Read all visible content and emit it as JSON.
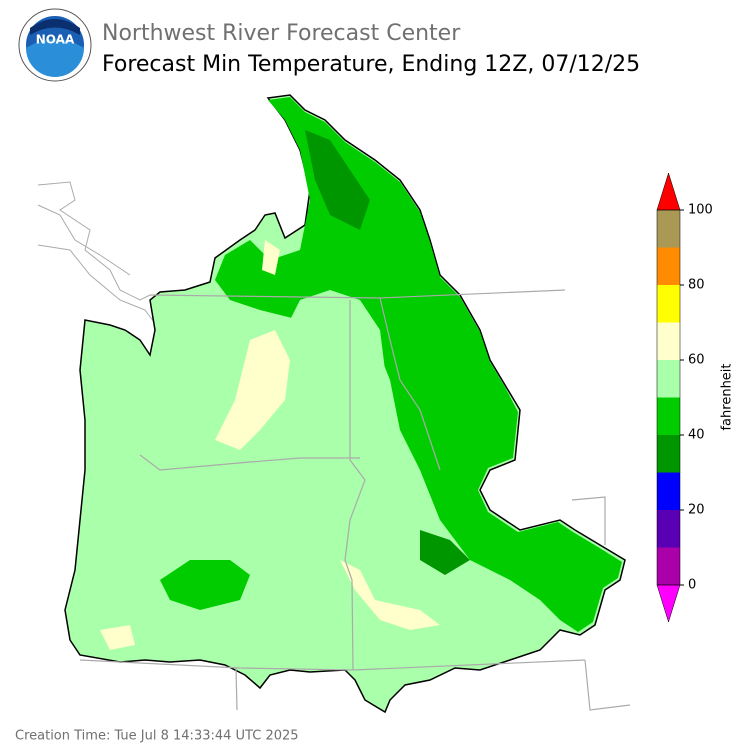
{
  "header": {
    "logo_text": "NOAA",
    "agency": "Northwest River Forecast Center",
    "title": "Forecast Min Temperature, Ending 12Z, 07/12/25"
  },
  "colorbar": {
    "bounds": [
      0,
      10,
      20,
      30,
      40,
      50,
      60,
      70,
      80,
      90,
      100
    ],
    "colors": [
      "#aa00aa",
      "#5a00b4",
      "#0000ff",
      "#009600",
      "#00cc00",
      "#aaffaa",
      "#ffffcc",
      "#ffff00",
      "#ff8c00",
      "#aa9955"
    ],
    "under_color": "#ff00ff",
    "over_color": "#ff0000",
    "ticks": [
      0,
      20,
      40,
      60,
      80,
      100
    ],
    "label": "fahrenheit"
  },
  "footer": {
    "creation_time": "Creation Time: Tue Jul 8 14:33:44 UTC 2025"
  }
}
